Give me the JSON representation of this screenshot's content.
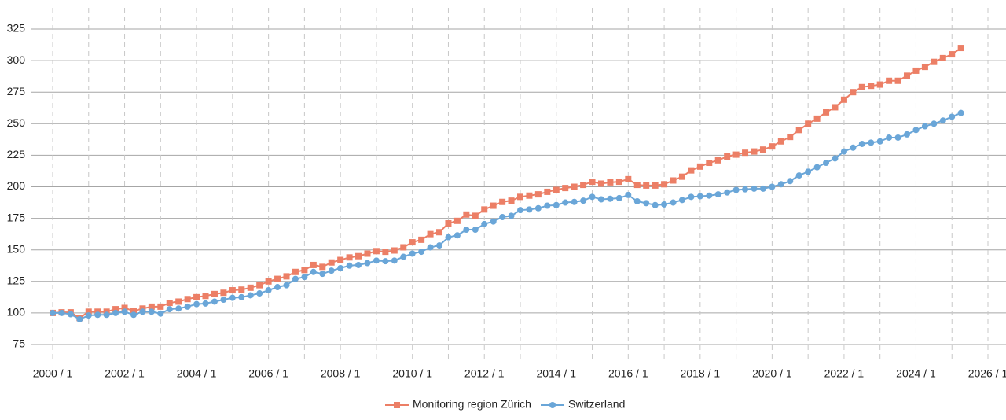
{
  "chart_data": {
    "type": "line",
    "categories": [
      "2000 / 1",
      null,
      null,
      null,
      null,
      null,
      null,
      null,
      "2002 / 1",
      null,
      null,
      null,
      null,
      null,
      null,
      null,
      "2004 / 1",
      null,
      null,
      null,
      null,
      null,
      null,
      null,
      "2006 / 1",
      null,
      null,
      null,
      null,
      null,
      null,
      null,
      "2008 / 1",
      null,
      null,
      null,
      null,
      null,
      null,
      null,
      "2010 / 1",
      null,
      null,
      null,
      null,
      null,
      null,
      null,
      "2012 / 1",
      null,
      null,
      null,
      null,
      null,
      null,
      null,
      "2014 / 1",
      null,
      null,
      null,
      null,
      null,
      null,
      null,
      "2016 / 1",
      null,
      null,
      null,
      null,
      null,
      null,
      null,
      "2018 / 1",
      null,
      null,
      null,
      null,
      null,
      null,
      null,
      "2020 / 1",
      null,
      null,
      null,
      null,
      null,
      null,
      null,
      "2022 / 1",
      null,
      null,
      null,
      null,
      null,
      null,
      null,
      "2024 / 1",
      null,
      null,
      null,
      null,
      null,
      null,
      null,
      "2026 / 1"
    ],
    "series": [
      {
        "name": "Monitoring region Zürich",
        "color": "#ec7f66",
        "marker": "square",
        "values": [
          100,
          100.5,
          100.5,
          96,
          101,
          101,
          101,
          103,
          104,
          101.5,
          103.5,
          105,
          105,
          108,
          109,
          111,
          112.5,
          113.5,
          115,
          116,
          118,
          118.5,
          120,
          122,
          125,
          127,
          129,
          132.5,
          134,
          138,
          136.5,
          140,
          142,
          144,
          145,
          147,
          149,
          148.5,
          149.5,
          152,
          156,
          158,
          162.5,
          164,
          171,
          173,
          178,
          177,
          182,
          185,
          188,
          189,
          192,
          193,
          194,
          196,
          197.5,
          199,
          200,
          201.5,
          204,
          202.5,
          203.5,
          204,
          206,
          201.5,
          201,
          201,
          202,
          205,
          208,
          213,
          216,
          219,
          221,
          224,
          225.5,
          227,
          228,
          229.5,
          232,
          236,
          239.5,
          245,
          250,
          254,
          259,
          263,
          269,
          275,
          279,
          280,
          281,
          284,
          284,
          288,
          292,
          295,
          299,
          302,
          305,
          310,
          null,
          null,
          null
        ]
      },
      {
        "name": "Switzerland",
        "color": "#6aa6d8",
        "marker": "circle",
        "values": [
          100,
          100,
          99,
          95,
          98,
          98.5,
          98.5,
          100,
          101,
          98.5,
          101,
          101,
          99.5,
          103,
          103.5,
          105,
          107,
          107.5,
          109,
          110.5,
          112,
          112.5,
          114,
          115.5,
          118,
          120.5,
          122,
          127,
          128.5,
          132.5,
          131,
          133.5,
          135.5,
          137.5,
          138,
          139.5,
          141.5,
          141,
          141.5,
          144.5,
          147,
          148.5,
          152,
          153.5,
          160,
          161.5,
          166,
          166,
          170.5,
          172.5,
          176,
          177,
          181.5,
          182,
          183,
          185,
          185.5,
          187.5,
          188,
          189,
          192,
          190,
          190.5,
          191,
          193.5,
          188.5,
          187,
          185.5,
          186,
          187.5,
          189.5,
          192,
          192.5,
          193,
          194,
          195.5,
          197.5,
          198,
          198.5,
          198.5,
          200,
          202,
          204.5,
          209,
          212,
          215.5,
          219,
          222.5,
          228,
          231,
          234,
          235,
          236,
          239,
          239,
          241.5,
          245,
          248,
          250,
          252.5,
          255.5,
          258.5,
          null,
          null,
          null
        ]
      }
    ],
    "ylim": [
      75,
      325
    ],
    "yticks": [
      75,
      100,
      125,
      150,
      175,
      200,
      225,
      250,
      275,
      300,
      325
    ],
    "grid": true,
    "legend": "bottom"
  }
}
